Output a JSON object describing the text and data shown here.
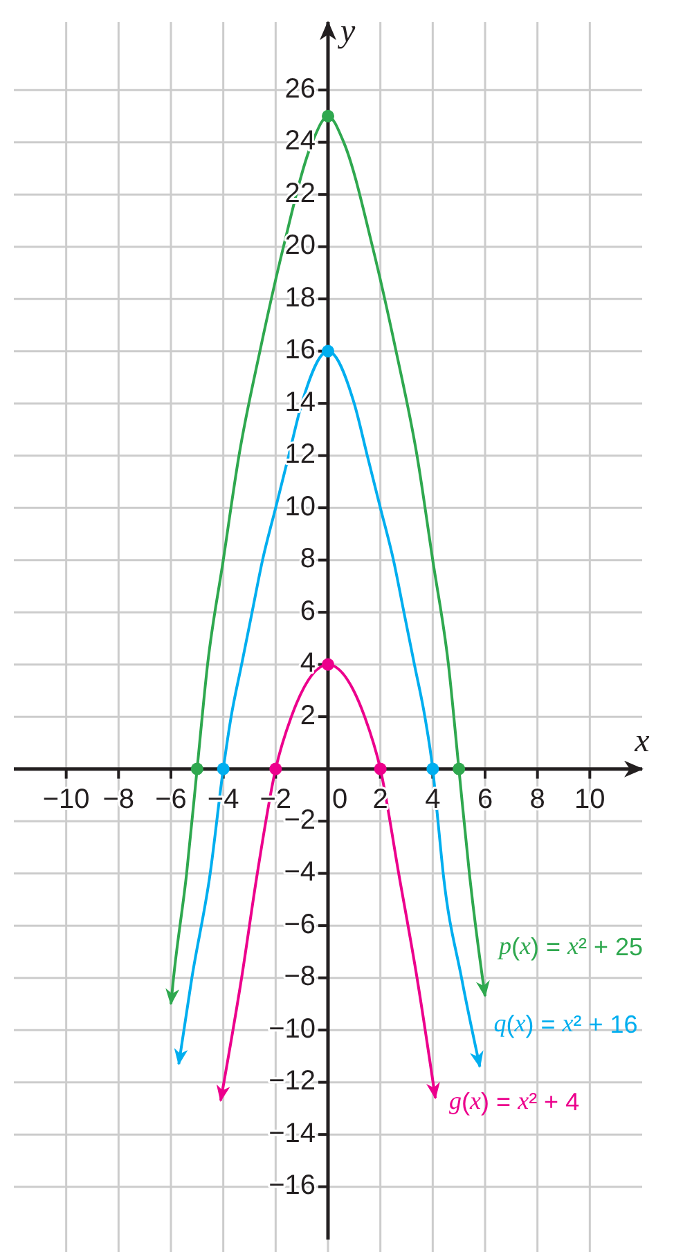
{
  "chart_data": {
    "type": "line",
    "xlabel": "x",
    "ylabel": "y",
    "xlim": [
      -12,
      12
    ],
    "ylim": [
      -18.5,
      28.6
    ],
    "xticks": [
      -10,
      -8,
      -6,
      -4,
      -2,
      0,
      2,
      4,
      6,
      8,
      10
    ],
    "yticks": [
      -16,
      -14,
      -12,
      -10,
      -8,
      -6,
      -4,
      -2,
      2,
      4,
      6,
      8,
      10,
      12,
      14,
      16,
      18,
      20,
      22,
      24,
      26
    ],
    "grid": true,
    "series": [
      {
        "name": "p(x) = x² + 25",
        "color": "#2fa84f",
        "x": [
          -6.0,
          -5.9,
          -5.4,
          -5.0,
          -4.6,
          -4.0,
          -3.4,
          -2.6,
          -1.7,
          -0.6,
          0,
          0.6,
          1.7,
          2.6,
          3.4,
          4.0,
          4.6,
          5.0,
          5.4,
          5.9,
          6.0
        ],
        "values": [
          -9.0,
          -8,
          -4,
          0,
          4,
          8,
          12,
          16,
          20,
          24,
          25,
          24,
          20,
          16,
          12,
          8,
          4,
          0,
          -4,
          -8,
          -8.7
        ]
      },
      {
        "name": "q(x) = x² + 16",
        "color": "#00aeef",
        "x": [
          -5.7,
          -5.2,
          -4.5,
          -4.0,
          -3.7,
          -3.3,
          -2.9,
          -2.5,
          -2.0,
          -1.5,
          -1.0,
          0,
          1.0,
          1.5,
          2.0,
          2.5,
          2.9,
          3.3,
          3.7,
          4.0,
          4.2,
          4.4,
          5.1,
          5.8
        ],
        "values": [
          -11.3,
          -8,
          -4,
          0,
          2,
          4,
          6,
          8,
          10,
          12,
          14,
          16,
          14,
          12,
          10,
          8,
          6,
          4,
          2,
          0,
          -2,
          -4,
          -8,
          -11.4
        ]
      },
      {
        "name": "g(x) = x² + 4",
        "color": "#ec008c",
        "x": [
          -4.1,
          -3.3,
          -2.7,
          -2.0,
          -1.4,
          0,
          1.4,
          2.0,
          2.7,
          3.4,
          4.1
        ],
        "values": [
          -12.7,
          -8,
          -4,
          0,
          2,
          4,
          2,
          0,
          -4,
          -8,
          -12.6
        ]
      },
      {
        "color": "#2fa84f",
        "type": "scatter",
        "marker": "circle",
        "x": [
          -5,
          0,
          5
        ],
        "values": [
          0,
          25,
          0
        ]
      },
      {
        "color": "#00aeef",
        "type": "scatter",
        "marker": "circle",
        "x": [
          -4,
          0,
          4
        ],
        "values": [
          0,
          16,
          0
        ]
      },
      {
        "color": "#ec008c",
        "type": "scatter",
        "marker": "circle",
        "x": [
          -2,
          0,
          2
        ],
        "values": [
          0,
          4,
          0
        ]
      }
    ]
  }
}
